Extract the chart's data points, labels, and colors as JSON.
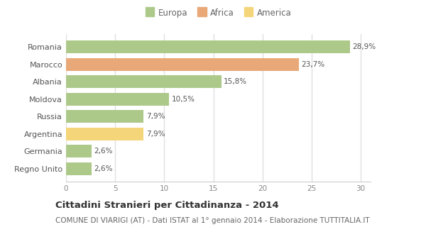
{
  "categories": [
    "Romania",
    "Marocco",
    "Albania",
    "Moldova",
    "Russia",
    "Argentina",
    "Germania",
    "Regno Unito"
  ],
  "values": [
    28.9,
    23.7,
    15.8,
    10.5,
    7.9,
    7.9,
    2.6,
    2.6
  ],
  "labels": [
    "28,9%",
    "23,7%",
    "15,8%",
    "10,5%",
    "7,9%",
    "7,9%",
    "2,6%",
    "2,6%"
  ],
  "colors": [
    "#adc98a",
    "#e8a878",
    "#adc98a",
    "#adc98a",
    "#adc98a",
    "#f5d57a",
    "#adc98a",
    "#adc98a"
  ],
  "legend": [
    {
      "label": "Europa",
      "color": "#adc98a"
    },
    {
      "label": "Africa",
      "color": "#e8a878"
    },
    {
      "label": "America",
      "color": "#f5d57a"
    }
  ],
  "xlim": [
    0,
    31
  ],
  "xticks": [
    0,
    5,
    10,
    15,
    20,
    25,
    30
  ],
  "title": "Cittadini Stranieri per Cittadinanza - 2014",
  "subtitle": "COMUNE DI VIARIGI (AT) - Dati ISTAT al 1° gennaio 2014 - Elaborazione TUTTITALIA.IT",
  "background_color": "#ffffff",
  "grid_color": "#e0e0e0",
  "title_fontsize": 9.5,
  "subtitle_fontsize": 7.5,
  "label_fontsize": 7.5,
  "tick_fontsize": 7.5,
  "legend_fontsize": 8.5,
  "ytick_fontsize": 8
}
